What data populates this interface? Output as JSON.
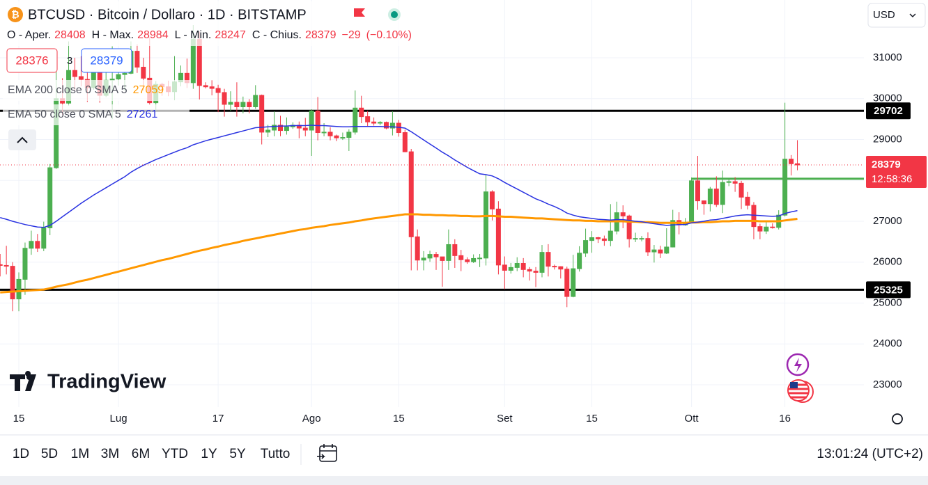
{
  "header": {
    "symbol": "BTCUSD · Bitcoin / Dollaro · 1D · BITSTAMP",
    "o_label": "O - Aper.",
    "h_label": "H - Max.",
    "l_label": "L - Min.",
    "c_label": "C - Chius.",
    "change": {
      "value": -29,
      "label": "−29"
    },
    "change_pct": {
      "value": -0.1,
      "label": "(−0.10%)"
    },
    "bid": 28376,
    "spread": 3,
    "currency": "USD"
  },
  "chart_data": {
    "type": "candlestick",
    "categories": [
      null,
      null,
      null,
      "15",
      null,
      null,
      null,
      null,
      null,
      null,
      null,
      null,
      null,
      null,
      null,
      null,
      null,
      null,
      null,
      "Lug",
      null,
      null,
      null,
      null,
      null,
      null,
      null,
      null,
      null,
      null,
      null,
      null,
      null,
      null,
      null,
      "17",
      null,
      null,
      null,
      null,
      null,
      null,
      null,
      null,
      null,
      null,
      null,
      null,
      null,
      null,
      "Ago",
      null,
      null,
      null,
      null,
      null,
      null,
      null,
      null,
      null,
      null,
      null,
      null,
      null,
      "15",
      null,
      null,
      null,
      null,
      null,
      null,
      null,
      null,
      null,
      null,
      null,
      null,
      null,
      null,
      null,
      null,
      "Set",
      null,
      null,
      null,
      null,
      null,
      null,
      null,
      null,
      null,
      null,
      null,
      null,
      null,
      "15",
      null,
      null,
      null,
      null,
      null,
      null,
      null,
      null,
      null,
      null,
      null,
      null,
      null,
      null,
      null,
      "Ott",
      null,
      null,
      null,
      null,
      null,
      null,
      null,
      null,
      null,
      null,
      null,
      null,
      null,
      null,
      "16",
      null,
      null
    ],
    "open": [
      25940,
      25920,
      25900,
      25100,
      25580,
      26340,
      26510,
      26340,
      26840,
      28310,
      30000,
      29890,
      30690,
      30540,
      30470,
      30270,
      30690,
      30080,
      30450,
      30480,
      30590,
      30620,
      31160,
      30770,
      30500,
      29900,
      30350,
      30290,
      30170,
      30410,
      30620,
      30390,
      31450,
      30320,
      30290,
      30250,
      30150,
      29860,
      29910,
      29800,
      29910,
      29800,
      30080,
      29180,
      29230,
      29350,
      29220,
      29310,
      29350,
      29280,
      29230,
      29700,
      29170,
      29180,
      29090,
      29040,
      29050,
      29180,
      29770,
      29560,
      29430,
      29400,
      29420,
      29280,
      29400,
      29170,
      28700,
      26620,
      26050,
      26100,
      26190,
      26130,
      26040,
      26430,
      26160,
      26060,
      26010,
      26090,
      26100,
      27720,
      27300,
      25930,
      25800,
      25870,
      25970,
      25820,
      25780,
      25750,
      26240,
      25900,
      25890,
      25830,
      25160,
      25840,
      26220,
      26530,
      26600,
      26570,
      26530,
      26760,
      27210,
      27130,
      26570,
      26580,
      26580,
      26250,
      26300,
      26220,
      26370,
      27020,
      26910,
      26970,
      27990,
      27500,
      27430,
      27790,
      27410,
      27950,
      27970,
      27930,
      27590,
      27390,
      26870,
      26760,
      26860,
      26850,
      27150,
      28520,
      28408
    ],
    "high": [
      26200,
      26400,
      26000,
      25750,
      26480,
      26770,
      26690,
      26990,
      28400,
      30790,
      30500,
      31400,
      31000,
      31040,
      30650,
      31000,
      30700,
      30830,
      31280,
      30650,
      30790,
      31400,
      31330,
      31000,
      31500,
      30430,
      30390,
      30440,
      31040,
      30810,
      30980,
      31800,
      31640,
      30400,
      30450,
      30340,
      30240,
      30180,
      30400,
      30050,
      29990,
      30330,
      30100,
      29360,
      29690,
      29580,
      29540,
      29420,
      29440,
      29530,
      29740,
      30040,
      29400,
      29300,
      29120,
      29170,
      29250,
      30200,
      30070,
      29700,
      29540,
      29450,
      29440,
      29690,
      29480,
      29240,
      28770,
      26800,
      26270,
      26280,
      26250,
      26130,
      26800,
      26560,
      26300,
      26120,
      26190,
      26200,
      28150,
      27760,
      27490,
      26140,
      25980,
      26120,
      26100,
      25880,
      25880,
      26420,
      26440,
      25940,
      25900,
      25890,
      26180,
      26390,
      26820,
      26760,
      26620,
      26650,
      27420,
      27480,
      27390,
      27160,
      26720,
      26640,
      26730,
      26420,
      26400,
      26830,
      27280,
      27220,
      27080,
      28070,
      28600,
      27510,
      27840,
      28100,
      28240,
      28050,
      28080,
      27990,
      27720,
      27470,
      26940,
      26980,
      26950,
      27270,
      29900,
      28620,
      28984
    ],
    "low": [
      25650,
      25700,
      24800,
      24800,
      25200,
      26180,
      26250,
      26270,
      26660,
      28280,
      29600,
      29830,
      30200,
      30300,
      29920,
      30220,
      29900,
      30040,
      29500,
      30320,
      30200,
      30600,
      30630,
      30200,
      29850,
      29700,
      30070,
      30060,
      29960,
      30300,
      30260,
      30240,
      29980,
      30250,
      30080,
      29670,
      29560,
      29700,
      29560,
      29640,
      29640,
      29750,
      28880,
      29060,
      29080,
      29080,
      29120,
      29260,
      29030,
      29080,
      28600,
      28980,
      29080,
      28980,
      28960,
      28990,
      28720,
      29120,
      29400,
      29320,
      29340,
      29350,
      29250,
      29100,
      29070,
      28690,
      25800,
      25800,
      25800,
      26010,
      25810,
      25400,
      25810,
      25860,
      25780,
      25960,
      25980,
      25880,
      25920,
      27020,
      25700,
      25340,
      25720,
      25780,
      25630,
      25550,
      25390,
      25630,
      25650,
      25820,
      25600,
      24900,
      25140,
      25770,
      26130,
      26230,
      26470,
      26400,
      26390,
      26680,
      26830,
      26360,
      26490,
      26510,
      26150,
      25990,
      26100,
      26200,
      26360,
      26680,
      26890,
      26960,
      27280,
      27160,
      27240,
      27350,
      27200,
      27860,
      27720,
      27300,
      27290,
      26560,
      26560,
      26690,
      26820,
      26800,
      27120,
      28120,
      28247
    ],
    "close": [
      25920,
      25900,
      25100,
      25580,
      26340,
      26510,
      26340,
      26840,
      28310,
      30000,
      29890,
      30690,
      30540,
      30470,
      30270,
      30690,
      30080,
      30450,
      30480,
      30590,
      30620,
      31160,
      30770,
      30500,
      29900,
      30350,
      30290,
      30170,
      30410,
      30620,
      30390,
      31450,
      30320,
      30290,
      30250,
      30150,
      29860,
      29910,
      29800,
      29910,
      29800,
      30080,
      29180,
      29230,
      29350,
      29220,
      29310,
      29350,
      29280,
      29230,
      29700,
      29170,
      29180,
      29090,
      29040,
      29050,
      29180,
      29770,
      29560,
      29430,
      29400,
      29420,
      29280,
      29400,
      29170,
      28700,
      26620,
      26050,
      26100,
      26190,
      26130,
      26040,
      26430,
      26160,
      26060,
      26010,
      26090,
      26100,
      27720,
      27300,
      25930,
      25800,
      25870,
      25970,
      25820,
      25780,
      25750,
      26240,
      25900,
      25890,
      25830,
      25160,
      25840,
      26220,
      26530,
      26600,
      26570,
      26530,
      26760,
      27210,
      27130,
      26570,
      26580,
      26580,
      26250,
      26300,
      26220,
      26370,
      27020,
      26910,
      26970,
      27990,
      27500,
      27430,
      27790,
      27410,
      27950,
      27970,
      27930,
      27590,
      27390,
      26870,
      26760,
      26860,
      26850,
      27150,
      28520,
      28408,
      28379
    ],
    "up_color": "#4caf50",
    "down_color": "#f23645",
    "series": [
      {
        "name": "EMA 200 close 0 SMA 5",
        "color": "#ff9800",
        "values": [
          25260,
          25270,
          25280,
          25290,
          25300,
          25310,
          25320,
          25330,
          25360,
          25400,
          25430,
          25460,
          25500,
          25540,
          25570,
          25610,
          25650,
          25690,
          25730,
          25770,
          25810,
          25850,
          25890,
          25930,
          25970,
          26010,
          26050,
          26080,
          26120,
          26160,
          26200,
          26240,
          26280,
          26310,
          26350,
          26380,
          26420,
          26450,
          26480,
          26520,
          26550,
          26580,
          26610,
          26640,
          26670,
          26700,
          26730,
          26760,
          26790,
          26810,
          26840,
          26860,
          26880,
          26910,
          26930,
          26950,
          26970,
          27000,
          27020,
          27050,
          27070,
          27090,
          27110,
          27130,
          27150,
          27170,
          27170,
          27170,
          27160,
          27160,
          27150,
          27150,
          27140,
          27140,
          27130,
          27130,
          27120,
          27120,
          27130,
          27130,
          27120,
          27110,
          27110,
          27100,
          27090,
          27080,
          27070,
          27070,
          27060,
          27050,
          27040,
          27030,
          27020,
          27020,
          27010,
          27010,
          27000,
          27000,
          27000,
          27000,
          27000,
          26990,
          26990,
          26980,
          26980,
          26970,
          26960,
          26960,
          26960,
          26960,
          26960,
          26970,
          26970,
          26980,
          26980,
          26990,
          27000,
          27000,
          27010,
          27010,
          27010,
          27010,
          27000,
          27000,
          27000,
          27000,
          27020,
          27040,
          27059
        ]
      },
      {
        "name": "EMA 50 close 0 SMA 5",
        "color": "#2932e1",
        "values": [
          27090,
          27050,
          27000,
          26960,
          26920,
          26890,
          26860,
          26850,
          26900,
          27000,
          27110,
          27220,
          27330,
          27440,
          27540,
          27640,
          27730,
          27820,
          27910,
          28000,
          28090,
          28200,
          28290,
          28370,
          28440,
          28510,
          28570,
          28630,
          28690,
          28750,
          28800,
          28870,
          28920,
          28970,
          29010,
          29050,
          29090,
          29130,
          29170,
          29210,
          29250,
          29290,
          29300,
          29310,
          29320,
          29330,
          29330,
          29340,
          29340,
          29340,
          29350,
          29340,
          29340,
          29330,
          29320,
          29310,
          29310,
          29320,
          29320,
          29320,
          29320,
          29320,
          29310,
          29310,
          29300,
          29280,
          29190,
          29090,
          28990,
          28890,
          28790,
          28690,
          28600,
          28500,
          28410,
          28320,
          28240,
          28160,
          28140,
          28110,
          28040,
          27950,
          27870,
          27790,
          27710,
          27630,
          27550,
          27490,
          27420,
          27360,
          27290,
          27200,
          27150,
          27110,
          27090,
          27070,
          27050,
          27040,
          27030,
          27040,
          27040,
          27020,
          27000,
          26990,
          26960,
          26940,
          26920,
          26900,
          26910,
          26920,
          26920,
          26960,
          26980,
          27000,
          27030,
          27040,
          27070,
          27100,
          27130,
          27150,
          27160,
          27150,
          27140,
          27130,
          27120,
          27130,
          27190,
          27230,
          27261
        ]
      }
    ],
    "levels": [
      {
        "value": 29702,
        "color": "#000000"
      },
      {
        "value": 25325,
        "color": "#000000"
      },
      {
        "value": 28041,
        "color": "#4caf50",
        "from": "Ott"
      }
    ],
    "countdown": "12:58:36",
    "ylim": [
      22455,
      32413
    ],
    "yticks": [
      23000,
      24000,
      25000,
      26000,
      27000,
      28000,
      29000,
      30000,
      31000
    ],
    "grid": true
  },
  "branding": "TradingView",
  "toolbar": {
    "ranges": [
      "1D",
      "5D",
      "1M",
      "3M",
      "6M",
      "YTD",
      "1Y",
      "5Y",
      "Tutto"
    ],
    "clock": "13:01:24 (UTC+2)"
  }
}
